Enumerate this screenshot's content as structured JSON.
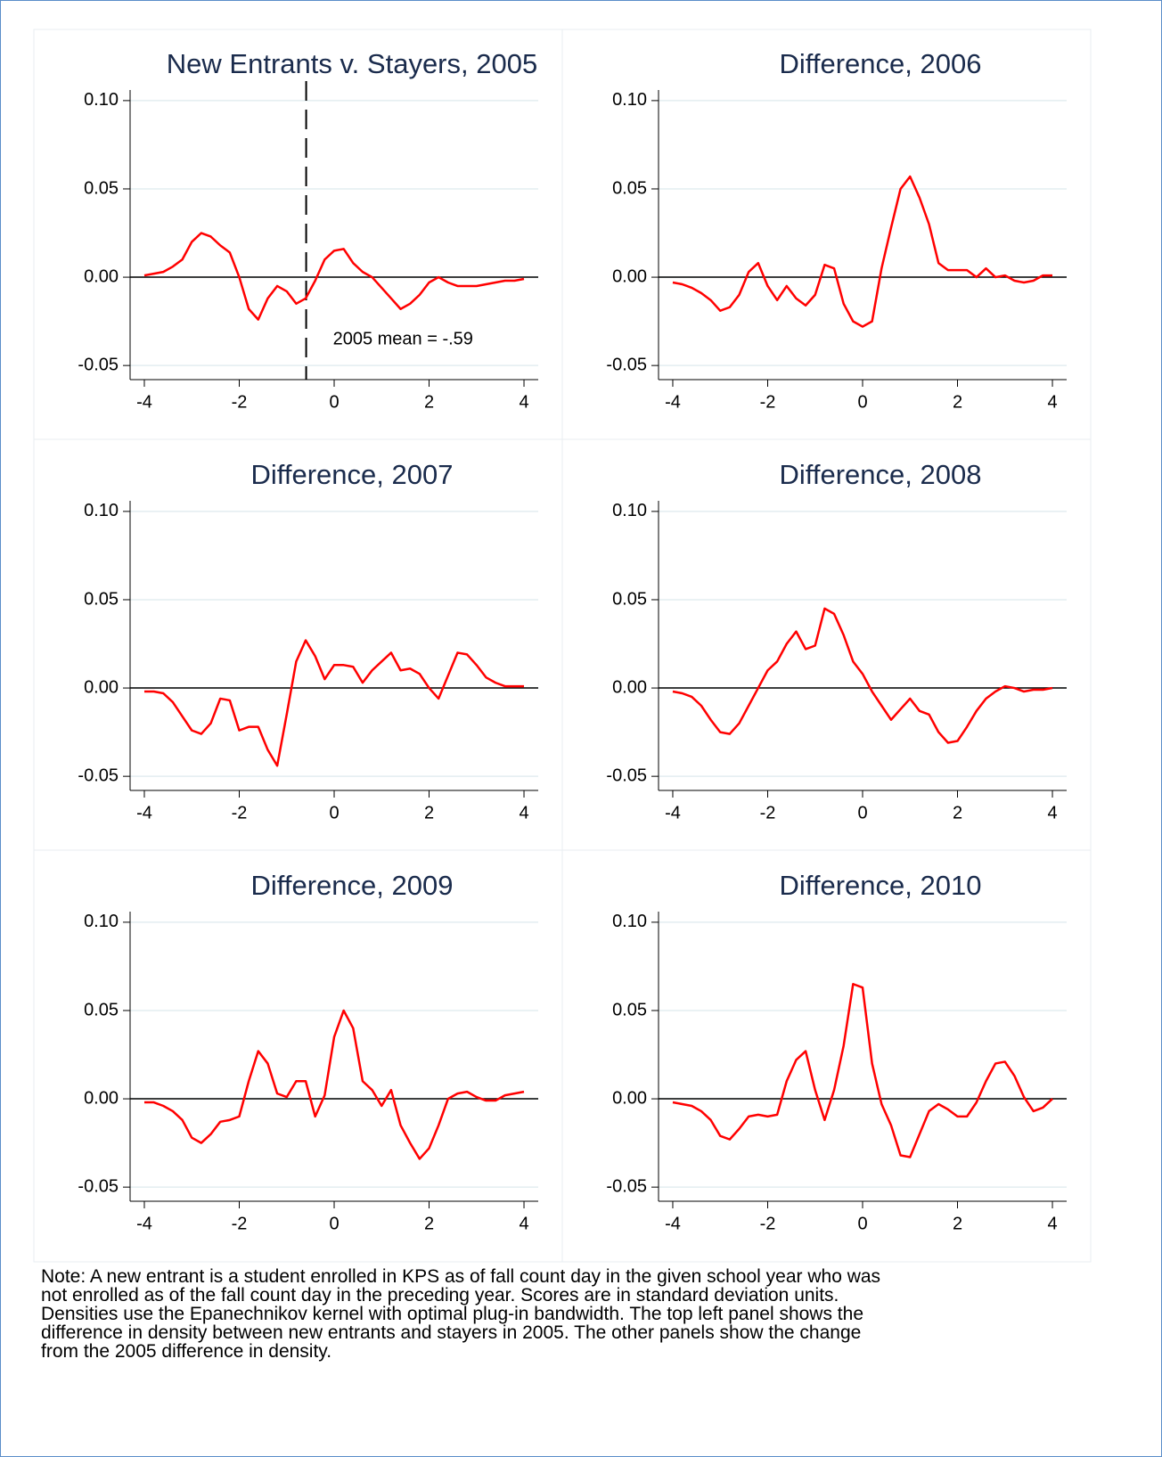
{
  "chart_data": [
    {
      "type": "line",
      "title": "New Entrants v. Stayers, 2005",
      "x": [
        -4,
        -3.8,
        -3.6,
        -3.4,
        -3.2,
        -3,
        -2.8,
        -2.6,
        -2.4,
        -2.2,
        -2,
        -1.8,
        -1.6,
        -1.4,
        -1.2,
        -1,
        -0.8,
        -0.6,
        -0.4,
        -0.2,
        0,
        0.2,
        0.4,
        0.6,
        0.8,
        1,
        1.2,
        1.4,
        1.6,
        1.8,
        2,
        2.2,
        2.4,
        2.6,
        2.8,
        3,
        3.2,
        3.4,
        3.6,
        3.8,
        4
      ],
      "series": [
        {
          "color": "#ff0000",
          "values": [
            0.001,
            0.002,
            0.003,
            0.006,
            0.01,
            0.02,
            0.025,
            0.023,
            0.018,
            0.014,
            0.0,
            -0.018,
            -0.024,
            -0.012,
            -0.005,
            -0.008,
            -0.015,
            -0.012,
            -0.002,
            0.01,
            0.015,
            0.016,
            0.008,
            0.003,
            0.0,
            -0.006,
            -0.012,
            -0.018,
            -0.015,
            -0.01,
            -0.003,
            0.0,
            -0.003,
            -0.005,
            -0.005,
            -0.005,
            -0.004,
            -0.003,
            -0.002,
            -0.002,
            -0.001
          ]
        }
      ],
      "xlim": [
        -4.3,
        4.3
      ],
      "ylim": [
        -0.058,
        0.106
      ],
      "xticks": [
        -4,
        -2,
        0,
        2,
        4
      ],
      "yticks": [
        {
          "value": -0.05,
          "label": "-0.05"
        },
        {
          "value": 0,
          "label": "0.00"
        },
        {
          "value": 0.05,
          "label": "0.05"
        },
        {
          "value": 0.1,
          "label": "0.10"
        }
      ],
      "grid": true,
      "hline": 0,
      "vline": -0.59,
      "annotation": "2005 mean = -.59"
    },
    {
      "type": "line",
      "title": "Difference, 2006",
      "x": [
        -4,
        -3.8,
        -3.6,
        -3.4,
        -3.2,
        -3,
        -2.8,
        -2.6,
        -2.4,
        -2.2,
        -2,
        -1.8,
        -1.6,
        -1.4,
        -1.2,
        -1,
        -0.8,
        -0.6,
        -0.4,
        -0.2,
        0,
        0.2,
        0.4,
        0.6,
        0.8,
        1,
        1.2,
        1.4,
        1.6,
        1.8,
        2,
        2.2,
        2.4,
        2.6,
        2.8,
        3,
        3.2,
        3.4,
        3.6,
        3.8,
        4
      ],
      "series": [
        {
          "color": "#ff0000",
          "values": [
            -0.003,
            -0.004,
            -0.006,
            -0.009,
            -0.013,
            -0.019,
            -0.017,
            -0.01,
            0.003,
            0.008,
            -0.005,
            -0.013,
            -0.005,
            -0.012,
            -0.016,
            -0.01,
            0.007,
            0.005,
            -0.015,
            -0.025,
            -0.028,
            -0.025,
            0.005,
            0.028,
            0.05,
            0.057,
            0.045,
            0.03,
            0.008,
            0.004,
            0.004,
            0.004,
            0.0,
            0.005,
            0.0,
            0.001,
            -0.002,
            -0.003,
            -0.002,
            0.001,
            0.001
          ]
        }
      ],
      "xlim": [
        -4.3,
        4.3
      ],
      "ylim": [
        -0.058,
        0.106
      ],
      "xticks": [
        -4,
        -2,
        0,
        2,
        4
      ],
      "yticks": [
        {
          "value": -0.05,
          "label": "-0.05"
        },
        {
          "value": 0,
          "label": "0.00"
        },
        {
          "value": 0.05,
          "label": "0.05"
        },
        {
          "value": 0.1,
          "label": "0.10"
        }
      ],
      "grid": true,
      "hline": 0
    },
    {
      "type": "line",
      "title": "Difference, 2007",
      "x": [
        -4,
        -3.8,
        -3.6,
        -3.4,
        -3.2,
        -3,
        -2.8,
        -2.6,
        -2.4,
        -2.2,
        -2,
        -1.8,
        -1.6,
        -1.4,
        -1.2,
        -1,
        -0.8,
        -0.6,
        -0.4,
        -0.2,
        0,
        0.2,
        0.4,
        0.6,
        0.8,
        1,
        1.2,
        1.4,
        1.6,
        1.8,
        2,
        2.2,
        2.4,
        2.6,
        2.8,
        3,
        3.2,
        3.4,
        3.6,
        3.8,
        4
      ],
      "series": [
        {
          "color": "#ff0000",
          "values": [
            -0.002,
            -0.002,
            -0.003,
            -0.008,
            -0.016,
            -0.024,
            -0.026,
            -0.02,
            -0.006,
            -0.007,
            -0.024,
            -0.022,
            -0.022,
            -0.035,
            -0.044,
            -0.015,
            0.015,
            0.027,
            0.018,
            0.005,
            0.013,
            0.013,
            0.012,
            0.003,
            0.01,
            0.015,
            0.02,
            0.01,
            0.011,
            0.008,
            0.0,
            -0.006,
            0.007,
            0.02,
            0.019,
            0.013,
            0.006,
            0.003,
            0.001,
            0.001,
            0.001
          ]
        }
      ],
      "xlim": [
        -4.3,
        4.3
      ],
      "ylim": [
        -0.058,
        0.106
      ],
      "xticks": [
        -4,
        -2,
        0,
        2,
        4
      ],
      "yticks": [
        {
          "value": -0.05,
          "label": "-0.05"
        },
        {
          "value": 0,
          "label": "0.00"
        },
        {
          "value": 0.05,
          "label": "0.05"
        },
        {
          "value": 0.1,
          "label": "0.10"
        }
      ],
      "grid": true,
      "hline": 0
    },
    {
      "type": "line",
      "title": "Difference, 2008",
      "x": [
        -4,
        -3.8,
        -3.6,
        -3.4,
        -3.2,
        -3,
        -2.8,
        -2.6,
        -2.4,
        -2.2,
        -2,
        -1.8,
        -1.6,
        -1.4,
        -1.2,
        -1,
        -0.8,
        -0.6,
        -0.4,
        -0.2,
        0,
        0.2,
        0.4,
        0.6,
        0.8,
        1,
        1.2,
        1.4,
        1.6,
        1.8,
        2,
        2.2,
        2.4,
        2.6,
        2.8,
        3,
        3.2,
        3.4,
        3.6,
        3.8,
        4
      ],
      "series": [
        {
          "color": "#ff0000",
          "values": [
            -0.002,
            -0.003,
            -0.005,
            -0.01,
            -0.018,
            -0.025,
            -0.026,
            -0.02,
            -0.01,
            0.0,
            0.01,
            0.015,
            0.025,
            0.032,
            0.022,
            0.024,
            0.045,
            0.042,
            0.03,
            0.015,
            0.008,
            -0.002,
            -0.01,
            -0.018,
            -0.012,
            -0.006,
            -0.013,
            -0.015,
            -0.025,
            -0.031,
            -0.03,
            -0.022,
            -0.013,
            -0.006,
            -0.002,
            0.001,
            0.0,
            -0.002,
            -0.001,
            -0.001,
            0.0
          ]
        }
      ],
      "xlim": [
        -4.3,
        4.3
      ],
      "ylim": [
        -0.058,
        0.106
      ],
      "xticks": [
        -4,
        -2,
        0,
        2,
        4
      ],
      "yticks": [
        {
          "value": -0.05,
          "label": "-0.05"
        },
        {
          "value": 0,
          "label": "0.00"
        },
        {
          "value": 0.05,
          "label": "0.05"
        },
        {
          "value": 0.1,
          "label": "0.10"
        }
      ],
      "grid": true,
      "hline": 0
    },
    {
      "type": "line",
      "title": "Difference, 2009",
      "x": [
        -4,
        -3.8,
        -3.6,
        -3.4,
        -3.2,
        -3,
        -2.8,
        -2.6,
        -2.4,
        -2.2,
        -2,
        -1.8,
        -1.6,
        -1.4,
        -1.2,
        -1,
        -0.8,
        -0.6,
        -0.4,
        -0.2,
        0,
        0.2,
        0.4,
        0.6,
        0.8,
        1,
        1.2,
        1.4,
        1.6,
        1.8,
        2,
        2.2,
        2.4,
        2.6,
        2.8,
        3,
        3.2,
        3.4,
        3.6,
        3.8,
        4
      ],
      "series": [
        {
          "color": "#ff0000",
          "values": [
            -0.002,
            -0.002,
            -0.004,
            -0.007,
            -0.012,
            -0.022,
            -0.025,
            -0.02,
            -0.013,
            -0.012,
            -0.01,
            0.01,
            0.027,
            0.02,
            0.003,
            0.001,
            0.01,
            0.01,
            -0.01,
            0.002,
            0.035,
            0.05,
            0.04,
            0.01,
            0.005,
            -0.004,
            0.005,
            -0.015,
            -0.025,
            -0.034,
            -0.028,
            -0.015,
            0.0,
            0.003,
            0.004,
            0.001,
            -0.001,
            -0.001,
            0.002,
            0.003,
            0.004
          ]
        }
      ],
      "xlim": [
        -4.3,
        4.3
      ],
      "ylim": [
        -0.058,
        0.106
      ],
      "xticks": [
        -4,
        -2,
        0,
        2,
        4
      ],
      "yticks": [
        {
          "value": -0.05,
          "label": "-0.05"
        },
        {
          "value": 0,
          "label": "0.00"
        },
        {
          "value": 0.05,
          "label": "0.05"
        },
        {
          "value": 0.1,
          "label": "0.10"
        }
      ],
      "grid": true,
      "hline": 0
    },
    {
      "type": "line",
      "title": "Difference, 2010",
      "x": [
        -4,
        -3.8,
        -3.6,
        -3.4,
        -3.2,
        -3,
        -2.8,
        -2.6,
        -2.4,
        -2.2,
        -2,
        -1.8,
        -1.6,
        -1.4,
        -1.2,
        -1,
        -0.8,
        -0.6,
        -0.4,
        -0.2,
        0,
        0.2,
        0.4,
        0.6,
        0.8,
        1,
        1.2,
        1.4,
        1.6,
        1.8,
        2,
        2.2,
        2.4,
        2.6,
        2.8,
        3,
        3.2,
        3.4,
        3.6,
        3.8,
        4
      ],
      "series": [
        {
          "color": "#ff0000",
          "values": [
            -0.002,
            -0.003,
            -0.004,
            -0.007,
            -0.012,
            -0.021,
            -0.023,
            -0.017,
            -0.01,
            -0.009,
            -0.01,
            -0.009,
            0.01,
            0.022,
            0.027,
            0.005,
            -0.012,
            0.005,
            0.03,
            0.065,
            0.063,
            0.02,
            -0.003,
            -0.015,
            -0.032,
            -0.033,
            -0.02,
            -0.007,
            -0.003,
            -0.006,
            -0.01,
            -0.01,
            -0.002,
            0.01,
            0.02,
            0.021,
            0.013,
            0.001,
            -0.007,
            -0.005,
            0.0
          ]
        }
      ],
      "xlim": [
        -4.3,
        4.3
      ],
      "ylim": [
        -0.058,
        0.106
      ],
      "xticks": [
        -4,
        -2,
        0,
        2,
        4
      ],
      "yticks": [
        {
          "value": -0.05,
          "label": "-0.05"
        },
        {
          "value": 0,
          "label": "0.00"
        },
        {
          "value": 0.05,
          "label": "0.05"
        },
        {
          "value": 0.1,
          "label": "0.10"
        }
      ],
      "grid": true,
      "hline": 0
    }
  ],
  "note": [
    "Note: A new entrant is a student enrolled in KPS as of fall count day in the given school year who was",
    "not enrolled as of the fall count day in the preceding year. Scores are in standard deviation units.",
    "Densities use the Epanechnikov kernel with optimal plug-in bandwidth. The top left panel shows the",
    "difference in density between new entrants and stayers in 2005. The other panels show the change",
    "from the 2005 difference in density."
  ]
}
